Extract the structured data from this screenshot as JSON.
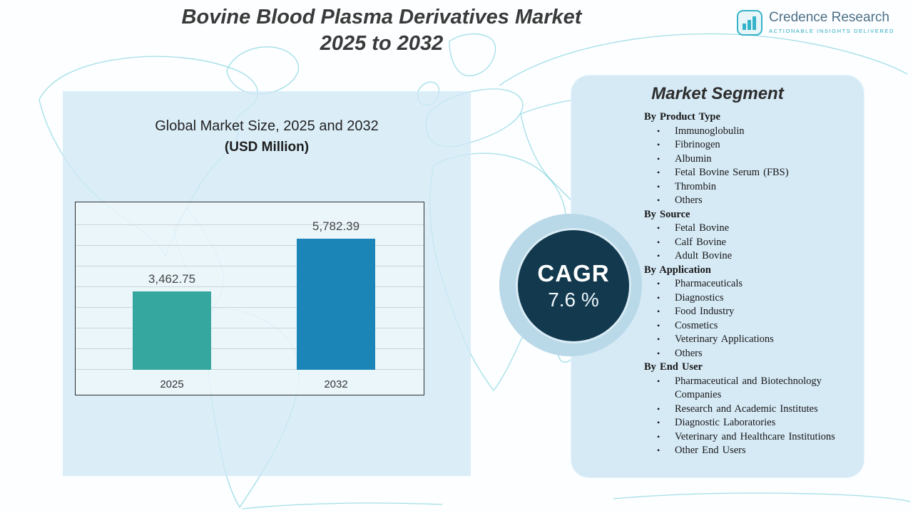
{
  "header": {
    "title_line1": "Bovine Blood Plasma Derivatives Market",
    "title_line2": "2025 to 2032"
  },
  "logo": {
    "name": "Credence Research",
    "tagline": "ACTIONABLE INSIGHTS DELIVERED"
  },
  "chart_data": {
    "type": "bar",
    "title": "Global Market Size, 2025 and 2032",
    "subtitle": "(USD Million)",
    "categories": [
      "2025",
      "2032"
    ],
    "values": [
      3462.75,
      5782.39
    ],
    "value_labels": [
      "3,462.75",
      "5,782.39"
    ],
    "bar_colors": [
      "#35A79E",
      "#1B85B8"
    ],
    "ylim": [
      0,
      7200
    ],
    "grid": true,
    "legend_position": "none"
  },
  "cagr": {
    "label": "CAGR",
    "value": "7.6 %"
  },
  "segments": {
    "title": "Market Segment",
    "groups": [
      {
        "heading": "By Product Type",
        "items": [
          "Immunoglobulin",
          "Fibrinogen",
          "Albumin",
          "Fetal Bovine Serum (FBS)",
          "Thrombin",
          "Others"
        ]
      },
      {
        "heading": "By Source",
        "items": [
          "Fetal Bovine",
          "Calf Bovine",
          "Adult Bovine"
        ]
      },
      {
        "heading": "By Application",
        "items": [
          "Pharmaceuticals",
          "Diagnostics",
          "Food Industry",
          "Cosmetics",
          "Veterinary Applications",
          "Others"
        ]
      },
      {
        "heading": "By End User",
        "items": [
          "Pharmaceutical and Biotechnology Companies",
          "Research and Academic Institutes",
          "Diagnostic Laboratories",
          "Veterinary and Healthcare Institutions",
          "Other End Users"
        ]
      }
    ]
  }
}
